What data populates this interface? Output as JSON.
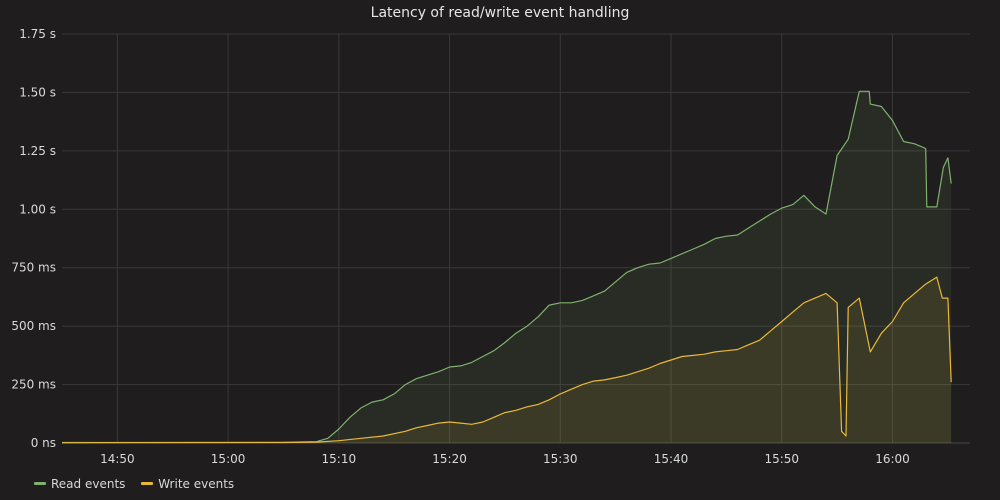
{
  "chart_data": {
    "type": "area",
    "title": "Latency of read/write event handling",
    "y_unit": "ms",
    "ylim": [
      0,
      1750
    ],
    "y_ticks": [
      {
        "value": 0,
        "label": "0 ns"
      },
      {
        "value": 250,
        "label": "250 ms"
      },
      {
        "value": 500,
        "label": "500 ms"
      },
      {
        "value": 750,
        "label": "750 ms"
      },
      {
        "value": 1000,
        "label": "1.00 s"
      },
      {
        "value": 1250,
        "label": "1.25 s"
      },
      {
        "value": 1500,
        "label": "1.50 s"
      },
      {
        "value": 1750,
        "label": "1.75 s"
      }
    ],
    "xlim": [
      "14:45",
      "16:07"
    ],
    "x_ticks": [
      "14:50",
      "15:00",
      "15:10",
      "15:20",
      "15:30",
      "15:40",
      "15:50",
      "16:00"
    ],
    "grid": true,
    "legend_position": "bottom-left",
    "series": [
      {
        "name": "Read events",
        "color": "#7eb26d",
        "points": [
          [
            "14:45",
            2
          ],
          [
            "15:05",
            3
          ],
          [
            "15:08",
            6
          ],
          [
            "15:09",
            20
          ],
          [
            "15:10",
            60
          ],
          [
            "15:11",
            110
          ],
          [
            "15:12",
            150
          ],
          [
            "15:13",
            175
          ],
          [
            "15:14",
            185
          ],
          [
            "15:15",
            210
          ],
          [
            "15:16",
            250
          ],
          [
            "15:17",
            275
          ],
          [
            "15:18",
            290
          ],
          [
            "15:19",
            305
          ],
          [
            "15:20",
            325
          ],
          [
            "15:21",
            330
          ],
          [
            "15:22",
            345
          ],
          [
            "15:23",
            370
          ],
          [
            "15:24",
            395
          ],
          [
            "15:25",
            430
          ],
          [
            "15:26",
            470
          ],
          [
            "15:27",
            500
          ],
          [
            "15:28",
            540
          ],
          [
            "15:29",
            590
          ],
          [
            "15:30",
            600
          ],
          [
            "15:31",
            600
          ],
          [
            "15:32",
            610
          ],
          [
            "15:33",
            630
          ],
          [
            "15:34",
            650
          ],
          [
            "15:35",
            690
          ],
          [
            "15:36",
            730
          ],
          [
            "15:37",
            750
          ],
          [
            "15:38",
            765
          ],
          [
            "15:39",
            770
          ],
          [
            "15:40",
            790
          ],
          [
            "15:41",
            810
          ],
          [
            "15:42",
            830
          ],
          [
            "15:43",
            850
          ],
          [
            "15:44",
            875
          ],
          [
            "15:45",
            885
          ],
          [
            "15:46",
            890
          ],
          [
            "15:47",
            920
          ],
          [
            "15:48",
            950
          ],
          [
            "15:49",
            980
          ],
          [
            "15:50",
            1005
          ],
          [
            "15:51",
            1020
          ],
          [
            "15:52",
            1060
          ],
          [
            "15:53",
            1010
          ],
          [
            "15:54",
            980
          ],
          [
            "15:55",
            1230
          ],
          [
            "15:56",
            1300
          ],
          [
            "15:57",
            1505
          ],
          [
            "15:57.9",
            1505
          ],
          [
            "15:58",
            1450
          ],
          [
            "15:59",
            1440
          ],
          [
            "16:00",
            1380
          ],
          [
            "16:01",
            1290
          ],
          [
            "16:02",
            1280
          ],
          [
            "16:03",
            1260
          ],
          [
            "16:03.1",
            1010
          ],
          [
            "16:04",
            1010
          ],
          [
            "16:04.6",
            1180
          ],
          [
            "16:05",
            1220
          ],
          [
            "16:05.3",
            1110
          ]
        ]
      },
      {
        "name": "Write events",
        "color": "#eab839",
        "points": [
          [
            "14:45",
            1
          ],
          [
            "15:05",
            2
          ],
          [
            "15:08",
            4
          ],
          [
            "15:10",
            10
          ],
          [
            "15:12",
            20
          ],
          [
            "15:14",
            30
          ],
          [
            "15:16",
            50
          ],
          [
            "15:17",
            65
          ],
          [
            "15:18",
            75
          ],
          [
            "15:19",
            85
          ],
          [
            "15:20",
            90
          ],
          [
            "15:21",
            85
          ],
          [
            "15:22",
            80
          ],
          [
            "15:23",
            90
          ],
          [
            "15:24",
            110
          ],
          [
            "15:25",
            130
          ],
          [
            "15:26",
            140
          ],
          [
            "15:27",
            155
          ],
          [
            "15:28",
            165
          ],
          [
            "15:29",
            185
          ],
          [
            "15:30",
            210
          ],
          [
            "15:31",
            230
          ],
          [
            "15:32",
            250
          ],
          [
            "15:33",
            265
          ],
          [
            "15:34",
            270
          ],
          [
            "15:35",
            280
          ],
          [
            "15:36",
            290
          ],
          [
            "15:37",
            305
          ],
          [
            "15:38",
            320
          ],
          [
            "15:39",
            340
          ],
          [
            "15:40",
            355
          ],
          [
            "15:41",
            370
          ],
          [
            "15:42",
            375
          ],
          [
            "15:43",
            380
          ],
          [
            "15:44",
            390
          ],
          [
            "15:45",
            395
          ],
          [
            "15:46",
            400
          ],
          [
            "15:47",
            420
          ],
          [
            "15:48",
            440
          ],
          [
            "15:49",
            480
          ],
          [
            "15:50",
            520
          ],
          [
            "15:51",
            560
          ],
          [
            "15:52",
            600
          ],
          [
            "15:53",
            620
          ],
          [
            "15:54",
            640
          ],
          [
            "15:55",
            600
          ],
          [
            "15:55.4",
            50
          ],
          [
            "15:55.8",
            30
          ],
          [
            "15:56",
            580
          ],
          [
            "15:57",
            620
          ],
          [
            "15:58",
            390
          ],
          [
            "15:59",
            470
          ],
          [
            "16:00",
            520
          ],
          [
            "16:01",
            600
          ],
          [
            "16:02",
            640
          ],
          [
            "16:03",
            680
          ],
          [
            "16:04",
            710
          ],
          [
            "16:04.5",
            620
          ],
          [
            "16:05",
            620
          ],
          [
            "16:05.3",
            260
          ]
        ]
      }
    ]
  }
}
